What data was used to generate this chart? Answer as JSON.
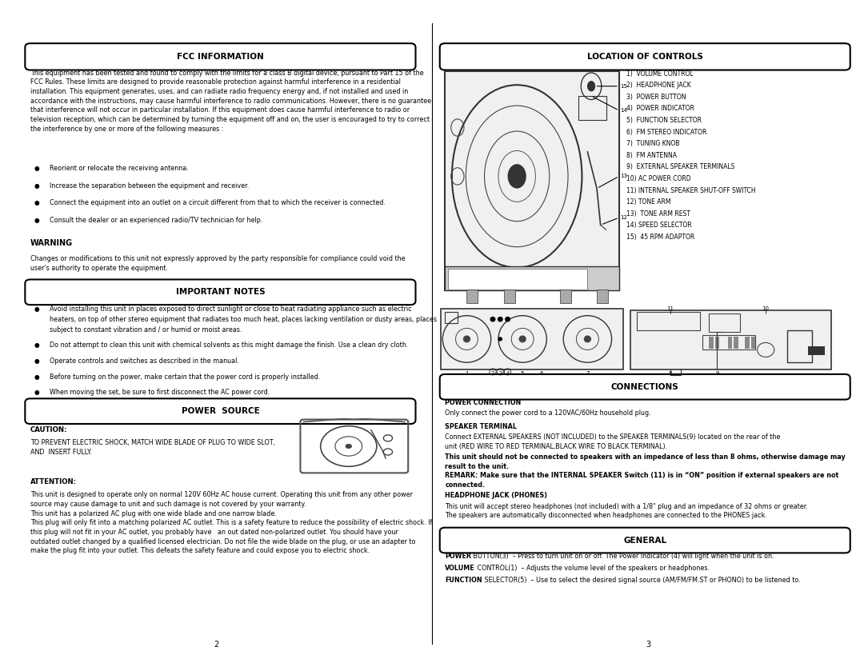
{
  "bg_color": "#ffffff",
  "page_width": 10.8,
  "page_height": 8.34,
  "fcc_text": "This equipment has been tested and found to comply with the limits for a class B digital device, pursuant to Part 15 of the\nFCC Rules. These limits are designed to provide reasonable protection against harmful interference in a residential\ninstallation. This equipment generates, uses, and can radiate radio frequency energy and, if not installed and used in\naccordance with the instructions, may cause harmful interference to radio communications. However, there is no guarantee\nthat interference will not occur in particular installation. If this equipment does cause harmful interference to radio or\ntelevision reception, which can be determined by turning the equipment off and on, the user is encouraged to try to correct\nthe interference by one or more of the following measures :",
  "fcc_bullets": [
    "Reorient or relocate the receiving antenna.",
    "Increase the separation between the equipment and receiver.",
    "Connect the equipment into an outlet on a circuit different from that to which the receiver is connected.",
    "Consult the dealer or an experienced radio/TV technician for help."
  ],
  "warning_text": "Changes or modifications to this unit not expressly approved by the party responsible for compliance could void the\nuser's authority to operate the equipment.",
  "important_bullets": [
    "Avoid installing this unit in places exposed to direct sunlight or close to heat radiating appliance such as electric\n  heaters, on top of other stereo equipment that radiates too much heat, places lacking ventilation or dusty areas, places\n  subject to constant vibration and / or humid or moist areas.",
    "Do not attempt to clean this unit with chemical solvents as this might damage the finish. Use a clean dry cloth.",
    "Operate controls and switches as described in the manual.",
    "Before turning on the power, make certain that the power cord is properly installed.",
    "When moving the set, be sure to first disconnect the AC power cord."
  ],
  "caution_text": "TO PREVENT ELECTRIC SHOCK, MATCH WIDE BLADE OF PLUG TO WIDE SLOT,\nAND  INSERT FULLY.",
  "attention_text": "This unit is designed to operate only on normal 120V 60Hz AC house current. Operating this unit from any other power\nsource may cause damage to unit and such damage is not covered by your warranty.\nThis unit has a polarized AC plug with one wide blade and one narrow blade.\nThis plug will only fit into a matching polarized AC outlet. This is a safety feature to reduce the possibility of electric shock. If\nthis plug will not fit in your AC outlet, you probably have   an out dated non-polarized outlet. You should have your\noutdated outlet changed by a qualified licensed electrician. Do not file the wide blade on the plug, or use an adapter to\nmake the plug fit into your outlet. This defeats the safety feature and could expose you to electric shock.",
  "controls": [
    "1)  VOLUME CONTROL",
    "2)  HEADPHONE JACK",
    "3)  POWER BUTTON",
    "4)  POWER INDICATOR",
    "5)  FUNCTION SELECTOR",
    "6)  FM STEREO INDICATOR",
    "7)  TUNING KNOB",
    "8)  FM ANTENNA",
    "9)  EXTERNAL SPEAKER TERMINALS",
    "10) AC POWER CORD",
    "11) INTERNAL SPEAKER SHUT-OFF SWITCH",
    "12) TONE ARM",
    "13)  TONE ARM REST",
    "14) SPEED SELECTOR",
    "15)  45 RPM ADAPTOR"
  ]
}
